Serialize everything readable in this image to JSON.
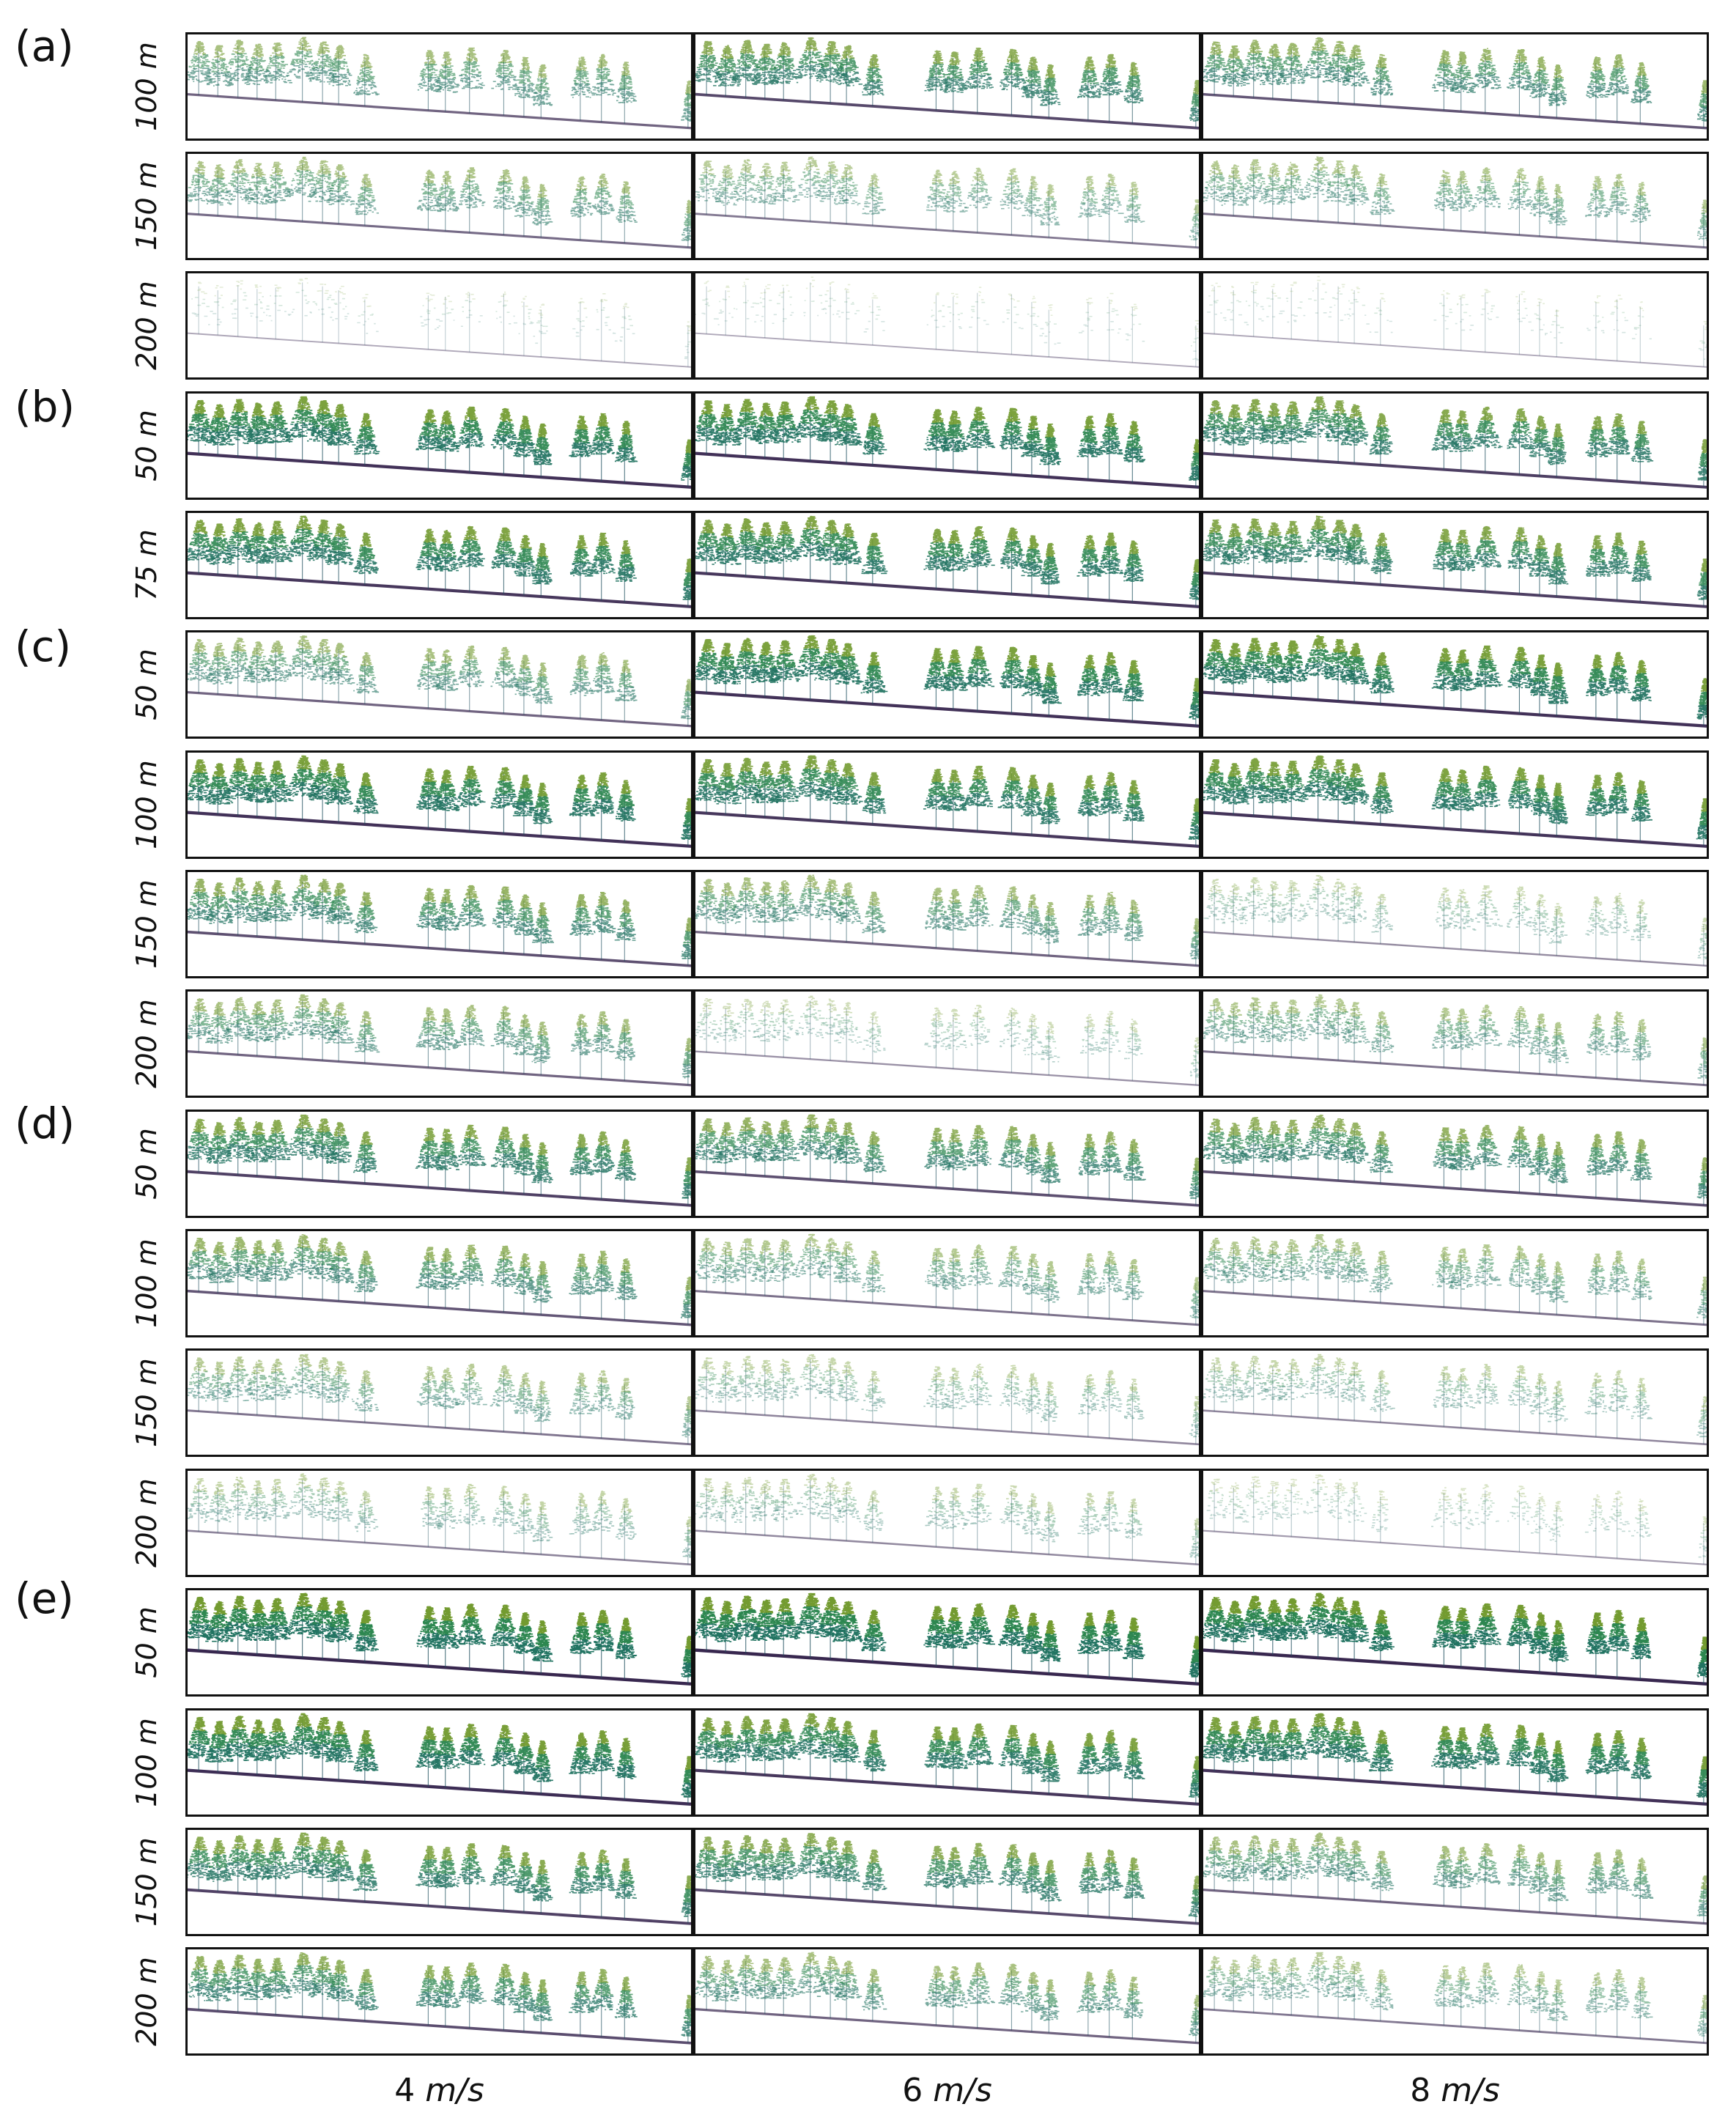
{
  "figure": {
    "columns": [
      {
        "number": "4",
        "unit": "m/s"
      },
      {
        "number": "6",
        "unit": "m/s"
      },
      {
        "number": "8",
        "unit": "m/s"
      }
    ],
    "groups": [
      {
        "label": "(a)",
        "rows": [
          "100 m",
          "150 m",
          "200 m"
        ]
      },
      {
        "label": "(b)",
        "rows": [
          "50 m",
          "75 m"
        ]
      },
      {
        "label": "(c)",
        "rows": [
          "50 m",
          "100 m",
          "150 m",
          "200 m"
        ]
      },
      {
        "label": "(d)",
        "rows": [
          "50 m",
          "100 m",
          "150 m",
          "200 m"
        ]
      },
      {
        "label": "(e)",
        "rows": [
          "50 m",
          "100 m",
          "150 m",
          "200 m"
        ]
      }
    ],
    "point_density": [
      [
        0.55,
        0.75,
        0.65
      ],
      [
        0.5,
        0.4,
        0.45
      ],
      [
        0.06,
        0.05,
        0.05
      ],
      [
        0.92,
        0.92,
        0.82
      ],
      [
        0.88,
        0.88,
        0.82
      ],
      [
        0.55,
        0.92,
        0.92
      ],
      [
        0.92,
        0.88,
        0.9
      ],
      [
        0.7,
        0.55,
        0.25
      ],
      [
        0.55,
        0.22,
        0.45
      ],
      [
        0.8,
        0.7,
        0.7
      ],
      [
        0.65,
        0.45,
        0.45
      ],
      [
        0.42,
        0.3,
        0.3
      ],
      [
        0.32,
        0.28,
        0.15
      ],
      [
        1.0,
        1.0,
        1.0
      ],
      [
        0.95,
        0.88,
        0.92
      ],
      [
        0.8,
        0.75,
        0.55
      ],
      [
        0.72,
        0.55,
        0.4
      ]
    ],
    "colors": {
      "canopy_top": "#9aa51e",
      "canopy_mid": "#2f8a4e",
      "canopy_low": "#1c6b6a",
      "trunk": "#1f4f5e",
      "ground": "#2d1b46",
      "frame": "#111111"
    }
  }
}
